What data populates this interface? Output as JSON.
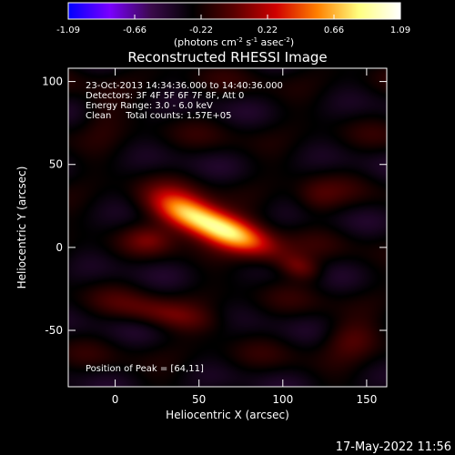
{
  "chart_data": {
    "type": "heatmap",
    "title": "Reconstructed RHESSI Image",
    "xlabel": "Heliocentric X (arcsec)",
    "ylabel": "Heliocentric Y (arcsec)",
    "xlim": [
      -28,
      162
    ],
    "ylim": [
      -84,
      108
    ],
    "x_ticks": [
      0,
      50,
      100,
      150
    ],
    "y_ticks": [
      -50,
      0,
      50,
      100
    ],
    "colorbar": {
      "range": [
        -1.09,
        1.09
      ],
      "ticks": [
        "-1.09",
        "-0.66",
        "-0.22",
        "0.22",
        "0.66",
        "1.09"
      ],
      "unit_label": "(photons cm",
      "unit_sup1": "-2",
      "unit_mid": " s",
      "unit_sup2": "-1",
      "unit_mid2": " asec",
      "unit_sup3": "-2",
      "unit_end": ")",
      "colors": [
        "#0000ff",
        "#7a00ff",
        "#3a0a4a",
        "#000000",
        "#5a0000",
        "#d00000",
        "#ff8000",
        "#ffff80",
        "#ffffff"
      ]
    },
    "annotations": [
      "23-Oct-2013 14:34:36.000 to 14:40:36.000",
      "Detectors: 3F 4F 5F 6F 7F 8F, Att 0",
      "Energy Range: 3.0 - 6.0 keV",
      "Clean     Total counts: 1.57E+05"
    ],
    "peak_text": "Position of Peak = [64,11]",
    "peak": [
      64,
      11
    ],
    "sources": [
      {
        "x": 64,
        "y": 11,
        "sx": 22,
        "sy": 7,
        "angle": -22,
        "amp": 1.09
      },
      {
        "x": 40,
        "y": 22,
        "sx": 14,
        "sy": 8,
        "angle": -20,
        "amp": 0.55
      },
      {
        "x": 110,
        "y": -12,
        "sx": 9,
        "sy": 5,
        "angle": -15,
        "amp": 0.3
      },
      {
        "x": 30,
        "y": -40,
        "sx": 22,
        "sy": 6,
        "angle": -10,
        "amp": 0.28
      },
      {
        "x": 20,
        "y": 5,
        "sx": 10,
        "sy": 6,
        "angle": 0,
        "amp": 0.2
      },
      {
        "x": 120,
        "y": 30,
        "sx": 10,
        "sy": 8,
        "angle": 0,
        "amp": 0.18
      },
      {
        "x": 140,
        "y": -55,
        "sx": 12,
        "sy": 8,
        "angle": 0,
        "amp": 0.22
      },
      {
        "x": -10,
        "y": 80,
        "sx": 10,
        "sy": 10,
        "angle": 0,
        "amp": 0.12
      }
    ]
  },
  "timestamp": "17-May-2022 11:56"
}
